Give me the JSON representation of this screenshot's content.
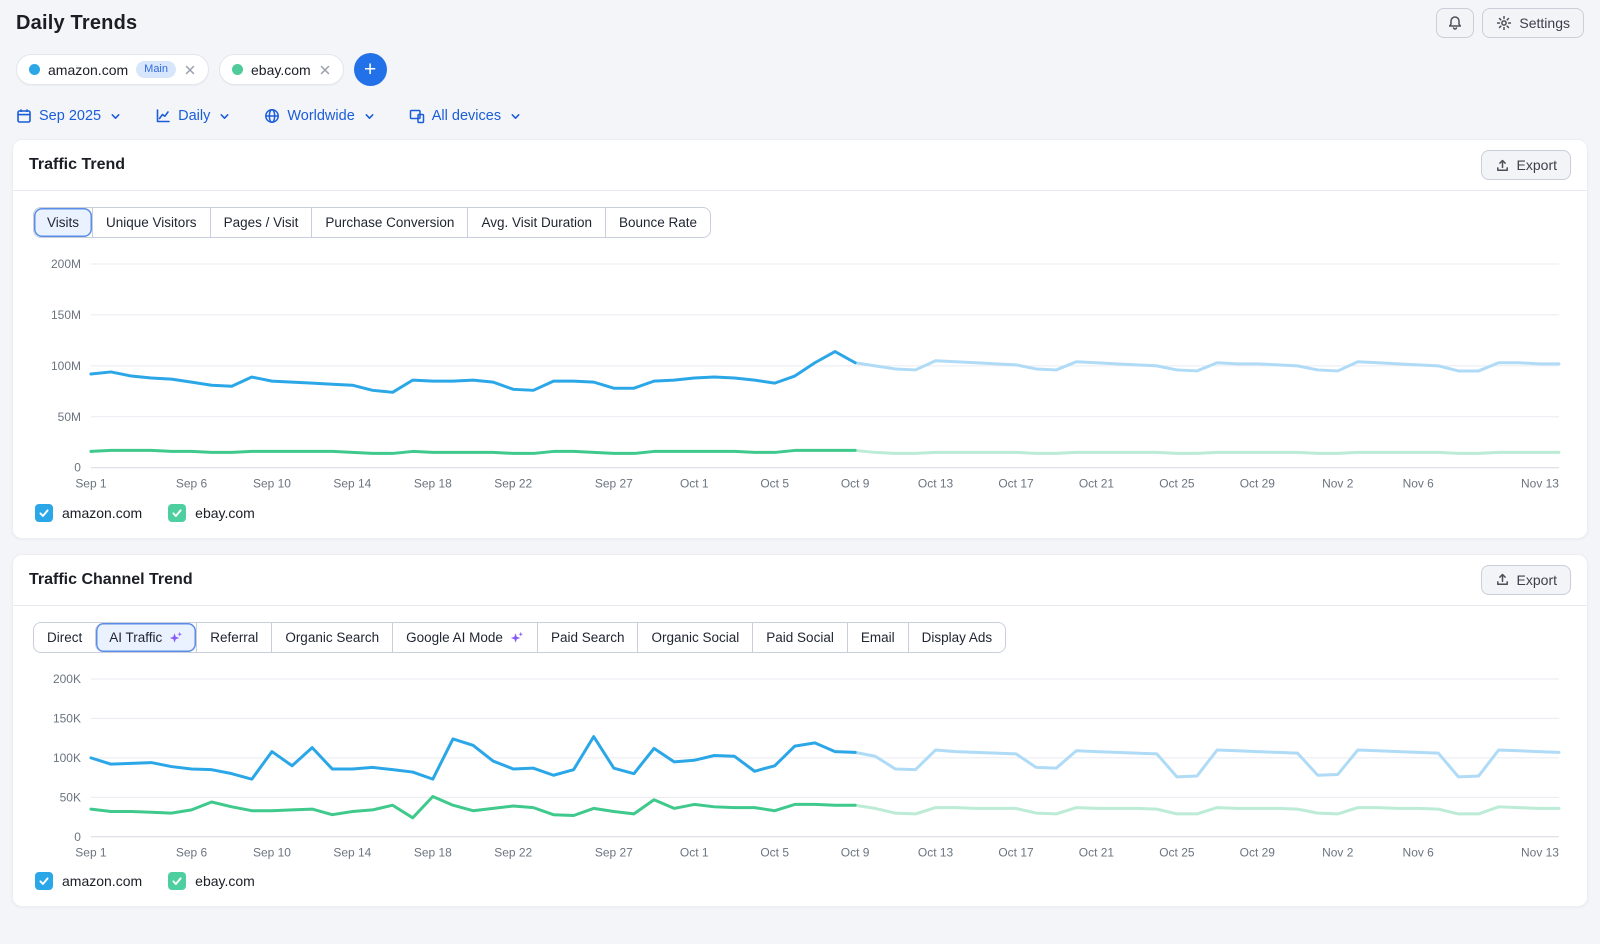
{
  "page": {
    "title": "Daily Trends"
  },
  "topbar": {
    "settings_label": "Settings"
  },
  "domains": {
    "add_label": "+",
    "chips": [
      {
        "label": "amazon.com",
        "badge": "Main",
        "dot_color": "#2BA7E8"
      },
      {
        "label": "ebay.com",
        "dot_color": "#4ECB99"
      }
    ]
  },
  "filters": [
    {
      "label": "Sep 2025",
      "icon": "calendar-icon"
    },
    {
      "label": "Daily",
      "icon": "line-chart-icon"
    },
    {
      "label": "Worldwide",
      "icon": "globe-icon"
    },
    {
      "label": "All devices",
      "icon": "devices-icon"
    }
  ],
  "cards": [
    {
      "title": "Traffic Trend",
      "export_label": "Export",
      "tabs": [
        {
          "label": "Visits",
          "selected": true
        },
        {
          "label": "Unique Visitors"
        },
        {
          "label": "Pages / Visit"
        },
        {
          "label": "Purchase Conversion"
        },
        {
          "label": "Avg. Visit Duration"
        },
        {
          "label": "Bounce Rate"
        }
      ],
      "legend": [
        {
          "label": "amazon.com",
          "checked": true,
          "color": "#2BA7E8"
        },
        {
          "label": "ebay.com",
          "checked": true,
          "color": "#4ECFA0"
        }
      ]
    },
    {
      "title": "Traffic Channel Trend",
      "export_label": "Export",
      "tabs": [
        {
          "label": "Direct"
        },
        {
          "label": "AI Traffic",
          "selected": true,
          "icon": "ai-sparkle-icon"
        },
        {
          "label": "Referral"
        },
        {
          "label": "Organic Search"
        },
        {
          "label": "Google AI Mode",
          "icon": "ai-sparkle-icon"
        },
        {
          "label": "Paid Search"
        },
        {
          "label": "Organic Social"
        },
        {
          "label": "Paid Social"
        },
        {
          "label": "Email"
        },
        {
          "label": "Display Ads"
        }
      ],
      "legend": [
        {
          "label": "amazon.com",
          "checked": true,
          "color": "#2BA7E8"
        },
        {
          "label": "ebay.com",
          "checked": true,
          "color": "#4ECFA0"
        }
      ]
    }
  ],
  "chart_data": [
    {
      "type": "line",
      "title": "Traffic Trend - Visits (daily)",
      "unit": "M",
      "ylim": [
        0,
        200
      ],
      "y_ticks": [
        {
          "v": 0,
          "label": "0"
        },
        {
          "v": 50,
          "label": "50M"
        },
        {
          "v": 100,
          "label": "100M"
        },
        {
          "v": 150,
          "label": "150M"
        },
        {
          "v": 200,
          "label": "200M"
        }
      ],
      "x": [
        "Sep 1",
        "Sep 2",
        "Sep 3",
        "Sep 4",
        "Sep 5",
        "Sep 6",
        "Sep 7",
        "Sep 8",
        "Sep 9",
        "Sep 10",
        "Sep 11",
        "Sep 12",
        "Sep 13",
        "Sep 14",
        "Sep 15",
        "Sep 16",
        "Sep 17",
        "Sep 18",
        "Sep 19",
        "Sep 20",
        "Sep 21",
        "Sep 22",
        "Sep 23",
        "Sep 24",
        "Sep 25",
        "Sep 26",
        "Sep 27",
        "Sep 28",
        "Sep 29",
        "Sep 30",
        "Oct 1",
        "Oct 2",
        "Oct 3",
        "Oct 4",
        "Oct 5",
        "Oct 6",
        "Oct 7",
        "Oct 8",
        "Oct 9",
        "Oct 10",
        "Oct 11",
        "Oct 12",
        "Oct 13",
        "Oct 14",
        "Oct 15",
        "Oct 16",
        "Oct 17",
        "Oct 18",
        "Oct 19",
        "Oct 20",
        "Oct 21",
        "Oct 22",
        "Oct 23",
        "Oct 24",
        "Oct 25",
        "Oct 26",
        "Oct 27",
        "Oct 28",
        "Oct 29",
        "Oct 30",
        "Oct 31",
        "Nov 1",
        "Nov 2",
        "Nov 3",
        "Nov 4",
        "Nov 5",
        "Nov 6",
        "Nov 7",
        "Nov 8",
        "Nov 9",
        "Nov 10",
        "Nov 11",
        "Nov 12",
        "Nov 13"
      ],
      "x_ticks": [
        "Sep 1",
        "Sep 6",
        "Sep 10",
        "Sep 14",
        "Sep 18",
        "Sep 22",
        "Sep 27",
        "Oct 1",
        "Oct 5",
        "Oct 9",
        "Oct 13",
        "Oct 17",
        "Oct 21",
        "Oct 25",
        "Oct 29",
        "Nov 2",
        "Nov 6",
        "Nov 13"
      ],
      "actual_until": "Oct 9",
      "actual_until_index": 38,
      "series": [
        {
          "name": "amazon.com",
          "color": "#2BA7E8",
          "forecast_color": "#AFDBF7",
          "values": [
            92,
            94,
            90,
            88,
            87,
            84,
            81,
            80,
            89,
            85,
            84,
            83,
            82,
            81,
            76,
            74,
            86,
            85,
            85,
            86,
            84,
            77,
            76,
            85,
            85,
            84,
            78,
            78,
            85,
            86,
            88,
            89,
            88,
            86,
            83,
            90,
            103,
            114,
            103,
            100,
            97,
            96,
            105,
            104,
            103,
            102,
            101,
            97,
            96,
            104,
            103,
            102,
            101,
            100,
            96,
            95,
            103,
            102,
            102,
            101,
            100,
            96,
            95,
            104,
            103,
            102,
            101,
            100,
            95,
            95,
            103,
            103,
            102,
            102
          ]
        },
        {
          "name": "ebay.com",
          "color": "#3FC98C",
          "forecast_color": "#BCEBD6",
          "values": [
            16,
            17,
            17,
            17,
            16,
            16,
            15,
            15,
            16,
            16,
            16,
            16,
            16,
            15,
            14,
            14,
            16,
            15,
            15,
            15,
            15,
            14,
            14,
            16,
            16,
            15,
            14,
            14,
            16,
            16,
            16,
            16,
            16,
            15,
            15,
            17,
            17,
            17,
            17,
            15,
            14,
            14,
            15,
            15,
            15,
            15,
            15,
            14,
            14,
            15,
            15,
            15,
            15,
            15,
            14,
            14,
            15,
            15,
            15,
            15,
            15,
            14,
            14,
            15,
            15,
            15,
            15,
            15,
            14,
            14,
            15,
            15,
            15,
            15
          ]
        }
      ]
    },
    {
      "type": "line",
      "title": "Traffic Channel Trend - AI Traffic (daily)",
      "unit": "K",
      "ylim": [
        0,
        200
      ],
      "y_ticks": [
        {
          "v": 0,
          "label": "0"
        },
        {
          "v": 50,
          "label": "50K"
        },
        {
          "v": 100,
          "label": "100K"
        },
        {
          "v": 150,
          "label": "150K"
        },
        {
          "v": 200,
          "label": "200K"
        }
      ],
      "x": [
        "Sep 1",
        "Sep 2",
        "Sep 3",
        "Sep 4",
        "Sep 5",
        "Sep 6",
        "Sep 7",
        "Sep 8",
        "Sep 9",
        "Sep 10",
        "Sep 11",
        "Sep 12",
        "Sep 13",
        "Sep 14",
        "Sep 15",
        "Sep 16",
        "Sep 17",
        "Sep 18",
        "Sep 19",
        "Sep 20",
        "Sep 21",
        "Sep 22",
        "Sep 23",
        "Sep 24",
        "Sep 25",
        "Sep 26",
        "Sep 27",
        "Sep 28",
        "Sep 29",
        "Sep 30",
        "Oct 1",
        "Oct 2",
        "Oct 3",
        "Oct 4",
        "Oct 5",
        "Oct 6",
        "Oct 7",
        "Oct 8",
        "Oct 9",
        "Oct 10",
        "Oct 11",
        "Oct 12",
        "Oct 13",
        "Oct 14",
        "Oct 15",
        "Oct 16",
        "Oct 17",
        "Oct 18",
        "Oct 19",
        "Oct 20",
        "Oct 21",
        "Oct 22",
        "Oct 23",
        "Oct 24",
        "Oct 25",
        "Oct 26",
        "Oct 27",
        "Oct 28",
        "Oct 29",
        "Oct 30",
        "Oct 31",
        "Nov 1",
        "Nov 2",
        "Nov 3",
        "Nov 4",
        "Nov 5",
        "Nov 6",
        "Nov 7",
        "Nov 8",
        "Nov 9",
        "Nov 10",
        "Nov 11",
        "Nov 12",
        "Nov 13"
      ],
      "x_ticks": [
        "Sep 1",
        "Sep 6",
        "Sep 10",
        "Sep 14",
        "Sep 18",
        "Sep 22",
        "Sep 27",
        "Oct 1",
        "Oct 5",
        "Oct 9",
        "Oct 13",
        "Oct 17",
        "Oct 21",
        "Oct 25",
        "Oct 29",
        "Nov 2",
        "Nov 6",
        "Nov 13"
      ],
      "actual_until": "Oct 9",
      "actual_until_index": 38,
      "series": [
        {
          "name": "amazon.com",
          "color": "#2BA7E8",
          "forecast_color": "#AFDBF7",
          "values": [
            100,
            92,
            93,
            94,
            89,
            86,
            85,
            80,
            73,
            108,
            90,
            113,
            86,
            86,
            88,
            85,
            82,
            73,
            124,
            116,
            96,
            86,
            87,
            78,
            85,
            127,
            87,
            80,
            112,
            95,
            97,
            103,
            102,
            83,
            90,
            115,
            119,
            108,
            107,
            102,
            86,
            85,
            110,
            108,
            107,
            106,
            105,
            88,
            87,
            109,
            108,
            107,
            106,
            105,
            76,
            77,
            110,
            109,
            108,
            107,
            106,
            78,
            79,
            110,
            109,
            108,
            107,
            106,
            76,
            77,
            110,
            109,
            108,
            107
          ]
        },
        {
          "name": "ebay.com",
          "color": "#3FC98C",
          "forecast_color": "#BCEBD6",
          "values": [
            35,
            32,
            32,
            31,
            30,
            34,
            44,
            38,
            33,
            33,
            34,
            35,
            28,
            32,
            34,
            40,
            24,
            51,
            40,
            33,
            36,
            39,
            37,
            28,
            27,
            36,
            32,
            29,
            47,
            36,
            41,
            38,
            37,
            37,
            33,
            41,
            41,
            40,
            40,
            36,
            30,
            29,
            37,
            37,
            36,
            36,
            36,
            30,
            29,
            37,
            36,
            36,
            36,
            35,
            29,
            29,
            37,
            36,
            36,
            36,
            35,
            30,
            29,
            37,
            37,
            36,
            36,
            35,
            29,
            29,
            38,
            37,
            36,
            36
          ]
        }
      ]
    }
  ]
}
